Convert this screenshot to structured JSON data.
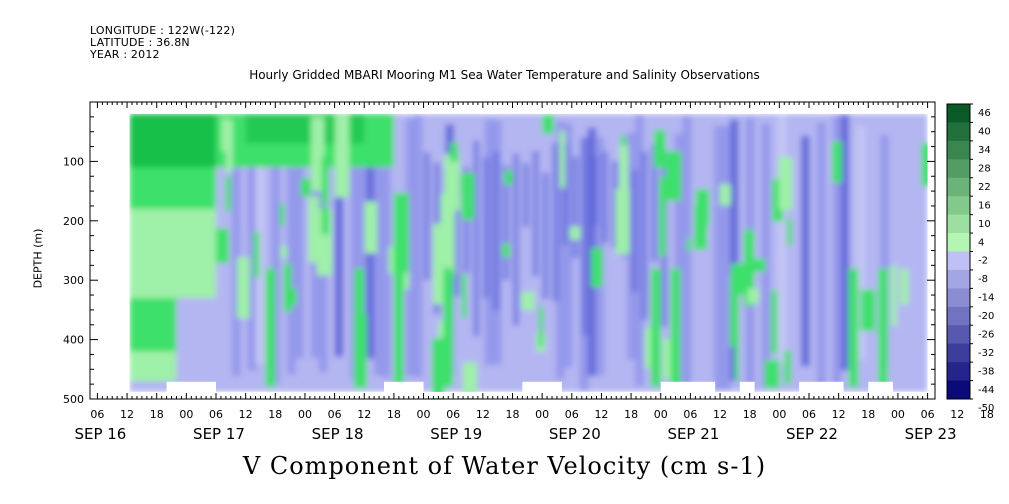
{
  "header": {
    "longitude": "LONGITUDE : 122W(-122)",
    "latitude": "LATITUDE : 36.8N",
    "year": "YEAR : 2012",
    "title": "Hourly Gridded MBARI Mooring M1 Sea Water Temperature and Salinity Observations",
    "footer": "V Component of Water Velocity (cm s-1)"
  },
  "colors": {
    "strong_green": "#14c04a",
    "mid_green": "#3ee06a",
    "light_green": "#9ff0a8",
    "pale_blue": "#b4b6f2",
    "mid_blue": "#8f94ea",
    "deep_blue": "#5a62d8"
  },
  "chart_data": {
    "type": "heatmap",
    "title": "Hourly Gridded MBARI Mooring M1 Sea Water Temperature and Salinity Observations",
    "xlabel": "",
    "ylabel": "DEPTH (m)",
    "y_ticks": [
      100,
      200,
      300,
      400,
      500
    ],
    "ylim": [
      500,
      0
    ],
    "x_hour_ticks": [
      "06",
      "12",
      "18",
      "00",
      "06",
      "12",
      "18",
      "00",
      "06",
      "12",
      "18",
      "00",
      "06",
      "12",
      "18",
      "00",
      "06",
      "12",
      "18",
      "00",
      "06",
      "12",
      "18",
      "00",
      "06",
      "12",
      "18",
      "00",
      "06",
      "12",
      "18",
      "00",
      "06"
    ],
    "date_labels": [
      "SEP 16",
      "SEP 17",
      "SEP 18",
      "SEP 19",
      "SEP 20",
      "SEP 21",
      "SEP 22",
      "SEP 23"
    ],
    "colorbar": {
      "label": "V Component of Water Velocity (cm s-1)",
      "levels": [
        46,
        40,
        34,
        28,
        22,
        16,
        10,
        4,
        -2,
        -8,
        -14,
        -20,
        -26,
        -32,
        -38,
        -44,
        -50
      ],
      "label_texts": [
        "46",
        "40",
        "34",
        "28",
        "22",
        "16",
        "10",
        "4",
        "-2",
        "-8",
        "-14",
        "-20",
        "-26",
        "-32",
        "-38",
        "-44",
        "-50"
      ]
    },
    "approx_field": [
      {
        "period": "SEP 16 12 - SEP 17 06",
        "depth": "20-470",
        "value_range": [
          4,
          16
        ]
      },
      {
        "period": "SEP 17 06 - SEP 18 18",
        "depth": "20-100",
        "value_range": [
          4,
          22
        ]
      },
      {
        "period": "SEP 17 06 - SEP 23 06",
        "depth": "100-490",
        "value_range": [
          -26,
          10
        ]
      },
      {
        "period": "SEP 19 00 - SEP 21 00",
        "depth": "20-490",
        "value_range": [
          -26,
          -2
        ]
      }
    ],
    "grid": false,
    "legend": "right"
  }
}
